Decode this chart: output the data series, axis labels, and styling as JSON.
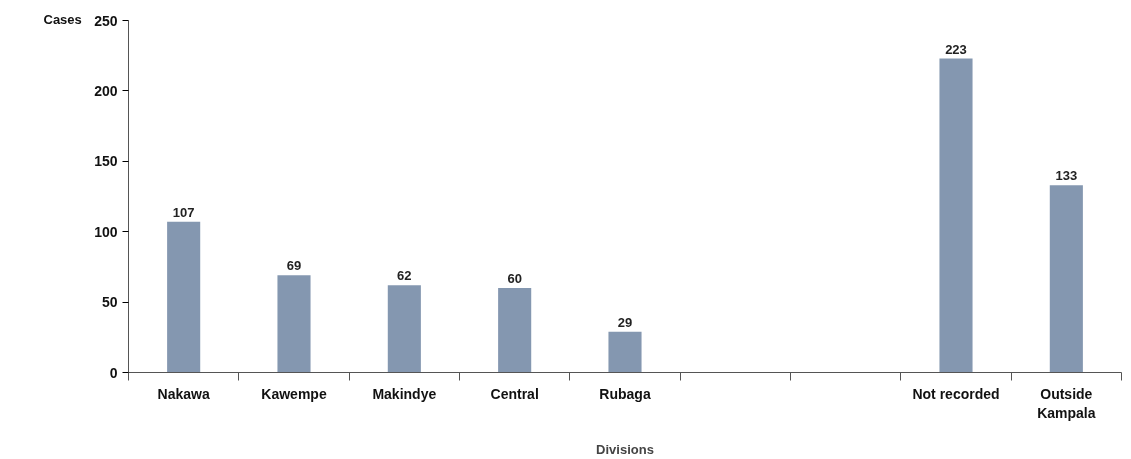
{
  "chart_data": {
    "type": "bar",
    "xlabel": "Divisions",
    "ylabel": "Cases",
    "categories": [
      "Nakawa",
      "Kawempe",
      "Makindye",
      "Central",
      "Rubaga",
      null,
      null,
      "Not recorded",
      "Outside Kampala"
    ],
    "values": [
      107,
      69,
      62,
      60,
      29,
      null,
      null,
      223,
      133
    ],
    "color": "#8497b0",
    "ylim": [
      0,
      250
    ],
    "yticks": [
      0,
      50,
      100,
      150,
      200,
      250
    ],
    "grid": false,
    "data_labels": true
  }
}
